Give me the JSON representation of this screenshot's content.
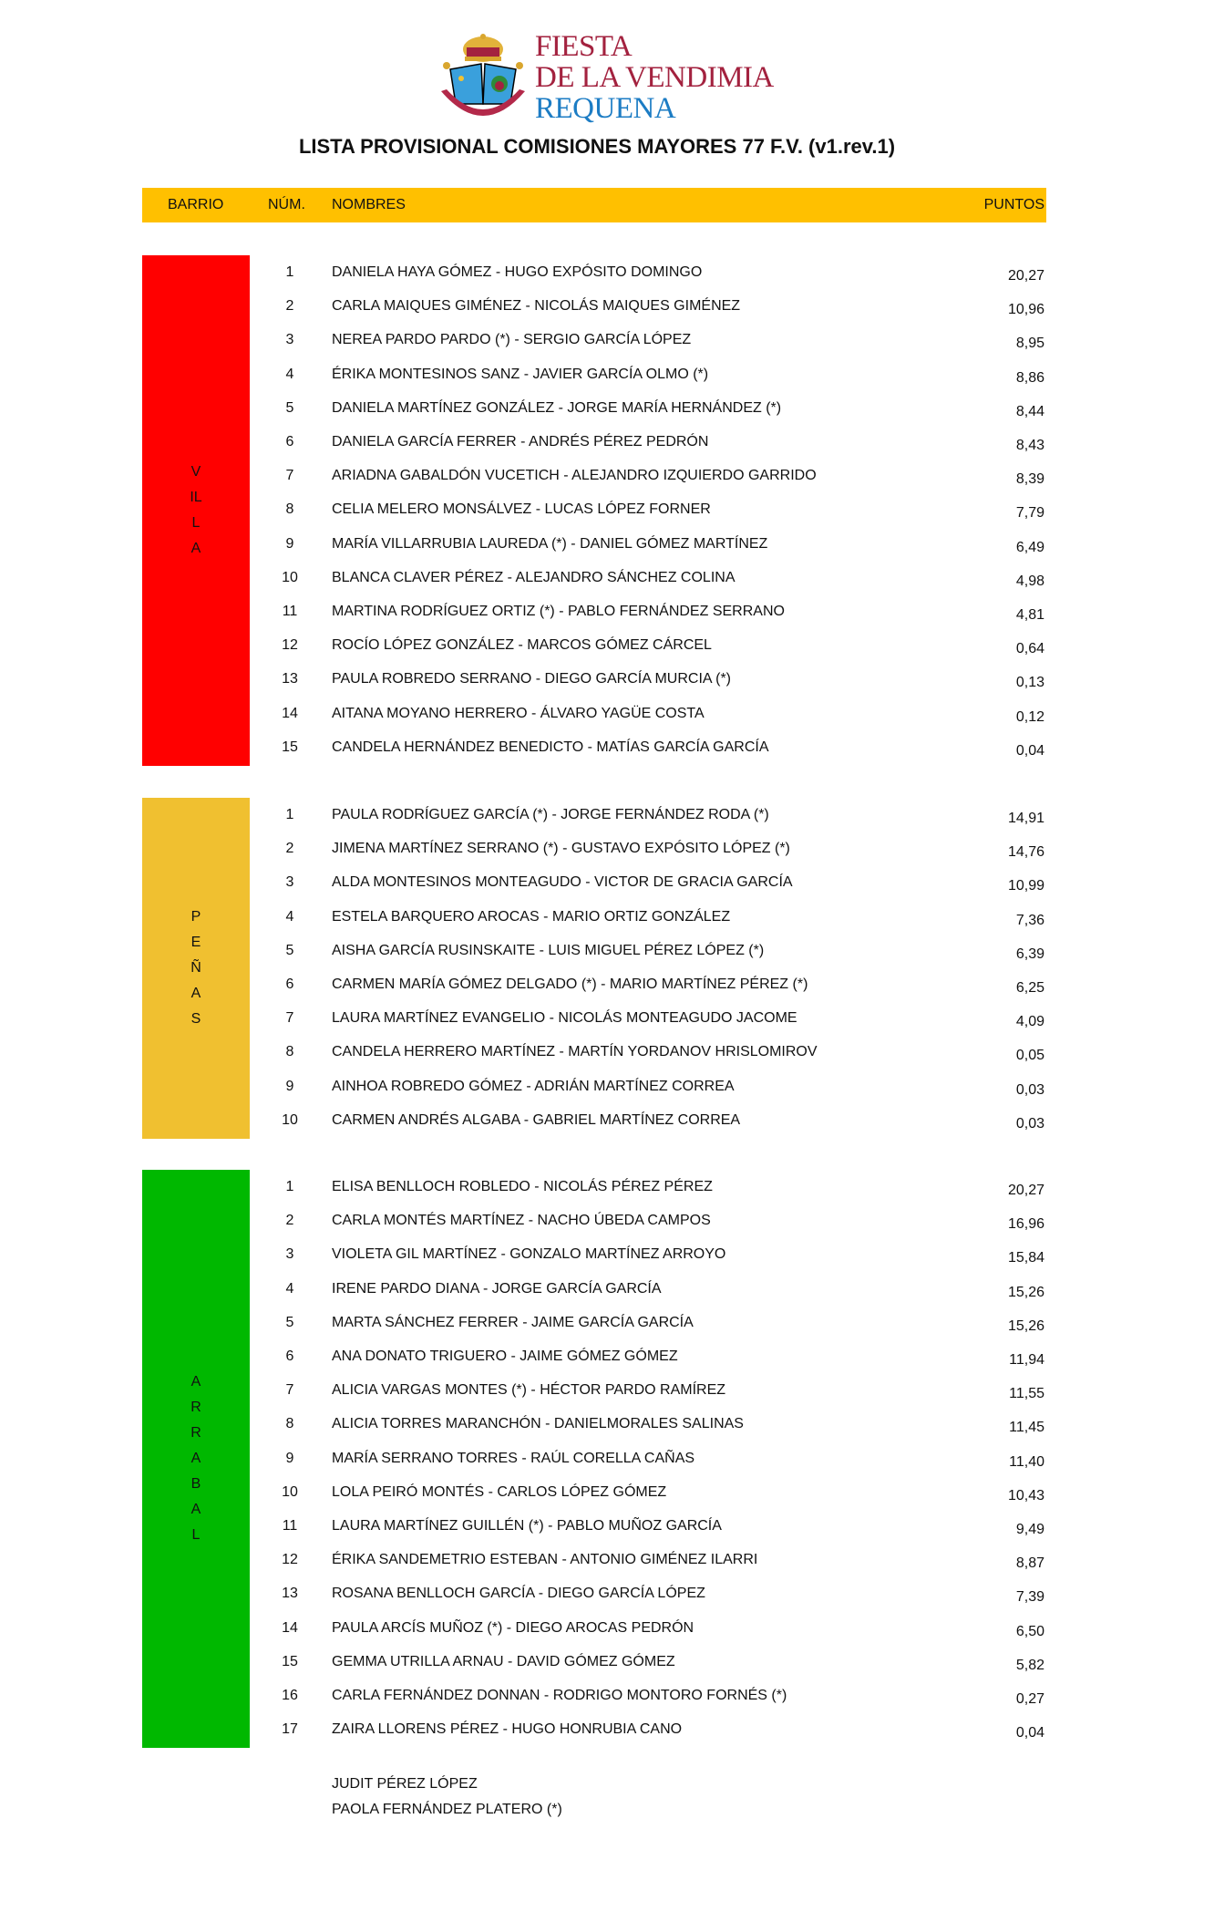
{
  "logo": {
    "line1": "FIESTA",
    "line2": "DE LA VENDIMIA",
    "line3": "REQUENA",
    "seal_text": "FIESTA DE LA VENDIMIA"
  },
  "title": "LISTA PROVISIONAL COMISIONES MAYORES 77 F.V. (v1.rev.1)",
  "header": {
    "barrio": "BARRIO",
    "num": "NÚM.",
    "nombres": "NOMBRES",
    "puntos": "PUNTOS",
    "color": "#FFC000"
  },
  "sections": [
    {
      "barrio": "VILLA",
      "color": "#FF0000",
      "rows": [
        {
          "num": "1",
          "names": "DANIELA HAYA GÓMEZ - HUGO EXPÓSITO DOMINGO",
          "pts": "20,27"
        },
        {
          "num": "2",
          "names": "CARLA MAIQUES GIMÉNEZ - NICOLÁS MAIQUES GIMÉNEZ",
          "pts": "10,96"
        },
        {
          "num": "3",
          "names": "NEREA PARDO PARDO (*) - SERGIO GARCÍA LÓPEZ",
          "pts": "8,95"
        },
        {
          "num": "4",
          "names": "ÉRIKA MONTESINOS SANZ - JAVIER GARCÍA OLMO (*)",
          "pts": "8,86"
        },
        {
          "num": "5",
          "names": "DANIELA MARTÍNEZ GONZÁLEZ - JORGE MARÍA HERNÁNDEZ (*)",
          "pts": "8,44"
        },
        {
          "num": "6",
          "names": "DANIELA GARCÍA FERRER - ANDRÉS PÉREZ PEDRÓN",
          "pts": "8,43"
        },
        {
          "num": "7",
          "names": "ARIADNA GABALDÓN VUCETICH - ALEJANDRO IZQUIERDO GARRIDO",
          "pts": "8,39"
        },
        {
          "num": "8",
          "names": "CELIA MELERO MONSÁLVEZ - LUCAS LÓPEZ FORNER",
          "pts": "7,79"
        },
        {
          "num": "9",
          "names": "MARÍA VILLARRUBIA LAUREDA (*) - DANIEL GÓMEZ MARTÍNEZ",
          "pts": "6,49"
        },
        {
          "num": "10",
          "names": "BLANCA CLAVER PÉREZ - ALEJANDRO SÁNCHEZ COLINA",
          "pts": "4,98"
        },
        {
          "num": "11",
          "names": "MARTINA RODRÍGUEZ ORTIZ (*) - PABLO FERNÁNDEZ SERRANO",
          "pts": "4,81"
        },
        {
          "num": "12",
          "names": "ROCÍO LÓPEZ GONZÁLEZ - MARCOS GÓMEZ CÁRCEL",
          "pts": "0,64"
        },
        {
          "num": "13",
          "names": "PAULA ROBREDO SERRANO - DIEGO GARCÍA MURCIA (*)",
          "pts": "0,13"
        },
        {
          "num": "14",
          "names": "AITANA MOYANO HERRERO - ÁLVARO YAGÜE COSTA",
          "pts": "0,12"
        },
        {
          "num": "15",
          "names": "CANDELA HERNÁNDEZ BENEDICTO - MATÍAS GARCÍA GARCÍA",
          "pts": "0,04"
        }
      ]
    },
    {
      "barrio": "PEÑAS",
      "color": "#F0C030",
      "rows": [
        {
          "num": "1",
          "names": "PAULA RODRÍGUEZ GARCÍA (*) - JORGE FERNÁNDEZ RODA (*)",
          "pts": "14,91"
        },
        {
          "num": "2",
          "names": "JIMENA MARTÍNEZ SERRANO (*) - GUSTAVO EXPÓSITO LÓPEZ (*)",
          "pts": "14,76"
        },
        {
          "num": "3",
          "names": "ALDA MONTESINOS MONTEAGUDO - VICTOR DE GRACIA GARCÍA",
          "pts": "10,99"
        },
        {
          "num": "4",
          "names": "ESTELA BARQUERO AROCAS - MARIO ORTIZ GONZÁLEZ",
          "pts": "7,36"
        },
        {
          "num": "5",
          "names": "AISHA GARCÍA RUSINSKAITE - LUIS MIGUEL PÉREZ LÓPEZ (*)",
          "pts": "6,39"
        },
        {
          "num": "6",
          "names": "CARMEN MARÍA GÓMEZ DELGADO (*) - MARIO MARTÍNEZ PÉREZ (*)",
          "pts": "6,25"
        },
        {
          "num": "7",
          "names": "LAURA MARTÍNEZ EVANGELIO - NICOLÁS MONTEAGUDO JACOME",
          "pts": "4,09"
        },
        {
          "num": "8",
          "names": "CANDELA HERRERO MARTÍNEZ - MARTÍN YORDANOV HRISLOMIROV",
          "pts": "0,05"
        },
        {
          "num": "9",
          "names": "AINHOA ROBREDO GÓMEZ - ADRIÁN MARTÍNEZ CORREA",
          "pts": "0,03"
        },
        {
          "num": "10",
          "names": "CARMEN ANDRÉS ALGABA - GABRIEL MARTÍNEZ CORREA",
          "pts": "0,03"
        }
      ]
    },
    {
      "barrio": "ARRABAL",
      "color": "#00B800",
      "rows": [
        {
          "num": "1",
          "names": "ELISA BENLLOCH ROBLEDO - NICOLÁS PÉREZ PÉREZ",
          "pts": "20,27"
        },
        {
          "num": "2",
          "names": "CARLA MONTÉS MARTÍNEZ - NACHO ÚBEDA CAMPOS",
          "pts": "16,96"
        },
        {
          "num": "3",
          "names": "VIOLETA GIL MARTÍNEZ - GONZALO MARTÍNEZ ARROYO",
          "pts": "15,84"
        },
        {
          "num": "4",
          "names": "IRENE PARDO DIANA - JORGE GARCÍA GARCÍA",
          "pts": "15,26"
        },
        {
          "num": "5",
          "names": "MARTA SÁNCHEZ FERRER - JAIME GARCÍA GARCÍA",
          "pts": "15,26"
        },
        {
          "num": "6",
          "names": "ANA DONATO TRIGUERO - JAIME GÓMEZ GÓMEZ",
          "pts": "11,94"
        },
        {
          "num": "7",
          "names": "ALICIA VARGAS MONTES (*) - HÉCTOR PARDO RAMÍREZ",
          "pts": "11,55"
        },
        {
          "num": "8",
          "names": "ALICIA TORRES MARANCHÓN - DANIELMORALES SALINAS",
          "pts": "11,45"
        },
        {
          "num": "9",
          "names": "MARÍA SERRANO TORRES - RAÚL CORELLA CAÑAS",
          "pts": "11,40"
        },
        {
          "num": "10",
          "names": "LOLA PEIRÓ MONTÉS - CARLOS LÓPEZ GÓMEZ",
          "pts": "10,43"
        },
        {
          "num": "11",
          "names": "LAURA MARTÍNEZ GUILLÉN (*) - PABLO MUÑOZ GARCÍA",
          "pts": "9,49"
        },
        {
          "num": "12",
          "names": "ÉRIKA SANDEMETRIO ESTEBAN - ANTONIO GIMÉNEZ ILARRI",
          "pts": "8,87"
        },
        {
          "num": "13",
          "names": "ROSANA BENLLOCH GARCÍA - DIEGO GARCÍA LÓPEZ",
          "pts": "7,39"
        },
        {
          "num": "14",
          "names": "PAULA ARCÍS MUÑOZ (*) - DIEGO AROCAS PEDRÓN",
          "pts": "6,50"
        },
        {
          "num": "15",
          "names": "GEMMA UTRILLA ARNAU - DAVID GÓMEZ GÓMEZ",
          "pts": "5,82"
        },
        {
          "num": "16",
          "names": "CARLA FERNÁNDEZ DONNAN - RODRIGO MONTORO FORNÉS (*)",
          "pts": "0,27"
        },
        {
          "num": "17",
          "names": "ZAIRA LLORENS PÉREZ - HUGO HONRUBIA CANO",
          "pts": "0,04"
        }
      ]
    }
  ],
  "extras": [
    "JUDIT PÉREZ LÓPEZ",
    "PAOLA FERNÁNDEZ PLATERO (*)"
  ]
}
